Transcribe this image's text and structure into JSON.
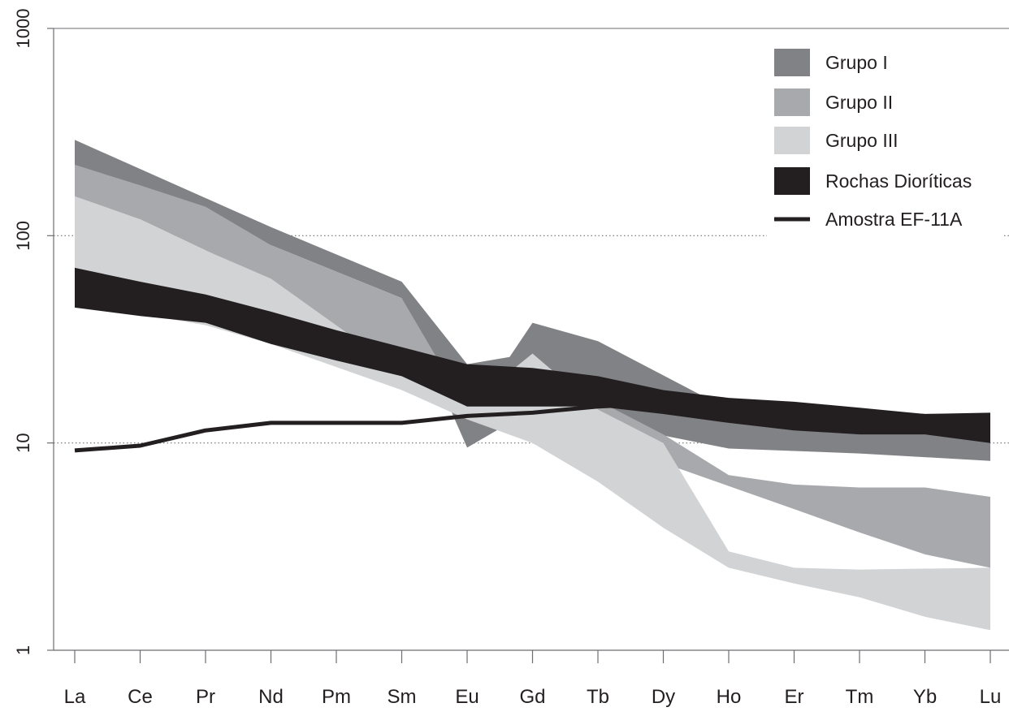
{
  "chart_data": {
    "type": "area",
    "y_scale": "log",
    "ylim": [
      1,
      1000
    ],
    "yticks": [
      {
        "value": 1,
        "label": "1"
      },
      {
        "value": 10,
        "label": "10"
      },
      {
        "value": 100,
        "label": "100"
      },
      {
        "value": 1000,
        "label": "1000"
      }
    ],
    "gridlines": [
      10,
      100
    ],
    "categories": [
      "La",
      "Ce",
      "Pr",
      "Nd",
      "Pm",
      "Sm",
      "Eu",
      "Gd",
      "Tb",
      "Dy",
      "Ho",
      "Er",
      "Tm",
      "Yb",
      "Lu"
    ],
    "legend_position": "top-right",
    "series": [
      {
        "name": "Grupo I",
        "kind": "band",
        "color": "#818285",
        "upper": [
          {
            "x": 0,
            "y": 290
          },
          {
            "x": 3,
            "y": 110
          },
          {
            "x": 5,
            "y": 60
          },
          {
            "x": 6,
            "y": 24
          },
          {
            "x": 6.65,
            "y": 26
          },
          {
            "x": 7,
            "y": 38
          },
          {
            "x": 8,
            "y": 31
          },
          {
            "x": 10,
            "y": 14.5
          },
          {
            "x": 12,
            "y": 12.5
          },
          {
            "x": 14,
            "y": 11.8
          }
        ],
        "lower": [
          {
            "x": 0,
            "y": 215
          },
          {
            "x": 3,
            "y": 90
          },
          {
            "x": 5,
            "y": 50
          },
          {
            "x": 6,
            "y": 9.5
          },
          {
            "x": 7,
            "y": 14.5
          },
          {
            "x": 10,
            "y": 9.4
          },
          {
            "x": 12,
            "y": 8.9
          },
          {
            "x": 14,
            "y": 8.2
          }
        ]
      },
      {
        "name": "Grupo II",
        "kind": "band",
        "color": "#a7a9ac",
        "upper": [
          {
            "x": 0,
            "y": 220
          },
          {
            "x": 1,
            "y": 175
          },
          {
            "x": 2,
            "y": 138
          },
          {
            "x": 3,
            "y": 90
          },
          {
            "x": 5,
            "y": 50
          },
          {
            "x": 6,
            "y": 14.5
          },
          {
            "x": 7,
            "y": 18
          },
          {
            "x": 8,
            "y": 16
          },
          {
            "x": 9,
            "y": 11
          },
          {
            "x": 10,
            "y": 7.0
          },
          {
            "x": 11,
            "y": 6.3
          },
          {
            "x": 12,
            "y": 6.1
          },
          {
            "x": 13,
            "y": 6.1
          },
          {
            "x": 14,
            "y": 5.5
          }
        ],
        "lower": [
          {
            "x": 0,
            "y": 150
          },
          {
            "x": 1,
            "y": 120
          },
          {
            "x": 2,
            "y": 85
          },
          {
            "x": 3,
            "y": 60
          },
          {
            "x": 5,
            "y": 20
          },
          {
            "x": 6,
            "y": 13.5
          },
          {
            "x": 7,
            "y": 11
          },
          {
            "x": 8,
            "y": 10.5
          },
          {
            "x": 9,
            "y": 8
          },
          {
            "x": 10,
            "y": 6.2
          },
          {
            "x": 11,
            "y": 4.8
          },
          {
            "x": 12,
            "y": 3.7
          },
          {
            "x": 13,
            "y": 2.9
          },
          {
            "x": 14,
            "y": 2.5
          }
        ]
      },
      {
        "name": "Grupo III",
        "kind": "band",
        "color": "#d1d3d4",
        "upper": [
          {
            "x": 0,
            "y": 155
          },
          {
            "x": 1,
            "y": 120
          },
          {
            "x": 2,
            "y": 85
          },
          {
            "x": 3,
            "y": 62
          },
          {
            "x": 5,
            "y": 22
          },
          {
            "x": 6,
            "y": 15
          },
          {
            "x": 7,
            "y": 27
          },
          {
            "x": 8,
            "y": 14.5
          },
          {
            "x": 9,
            "y": 10
          },
          {
            "x": 10,
            "y": 3.0
          },
          {
            "x": 11,
            "y": 2.5
          },
          {
            "x": 12,
            "y": 2.45
          },
          {
            "x": 14,
            "y": 2.5
          }
        ],
        "lower": [
          {
            "x": 0,
            "y": 45
          },
          {
            "x": 1,
            "y": 42
          },
          {
            "x": 2,
            "y": 37
          },
          {
            "x": 3,
            "y": 30
          },
          {
            "x": 5,
            "y": 18
          },
          {
            "x": 6,
            "y": 13
          },
          {
            "x": 7,
            "y": 10
          },
          {
            "x": 8,
            "y": 6.5
          },
          {
            "x": 9,
            "y": 3.9
          },
          {
            "x": 10,
            "y": 2.5
          },
          {
            "x": 11,
            "y": 2.1
          },
          {
            "x": 12,
            "y": 1.8
          },
          {
            "x": 13,
            "y": 1.45
          },
          {
            "x": 14,
            "y": 1.25
          }
        ]
      },
      {
        "name": "Rochas Dioríticas",
        "kind": "band",
        "color": "#231f20",
        "upper": [
          {
            "x": 0,
            "y": 70
          },
          {
            "x": 1,
            "y": 60
          },
          {
            "x": 2,
            "y": 52
          },
          {
            "x": 3,
            "y": 43
          },
          {
            "x": 4,
            "y": 35
          },
          {
            "x": 5,
            "y": 29
          },
          {
            "x": 6,
            "y": 24
          },
          {
            "x": 7,
            "y": 23
          },
          {
            "x": 8,
            "y": 21
          },
          {
            "x": 9,
            "y": 18
          },
          {
            "x": 10,
            "y": 16.5
          },
          {
            "x": 11,
            "y": 15.8
          },
          {
            "x": 12,
            "y": 14.8
          },
          {
            "x": 13,
            "y": 13.8
          },
          {
            "x": 14,
            "y": 14
          }
        ],
        "lower": [
          {
            "x": 0,
            "y": 45
          },
          {
            "x": 1,
            "y": 41
          },
          {
            "x": 2,
            "y": 38
          },
          {
            "x": 3,
            "y": 30
          },
          {
            "x": 4,
            "y": 25
          },
          {
            "x": 5,
            "y": 21
          },
          {
            "x": 6,
            "y": 15
          },
          {
            "x": 7,
            "y": 15
          },
          {
            "x": 8,
            "y": 15
          },
          {
            "x": 9,
            "y": 13.8
          },
          {
            "x": 10,
            "y": 12.5
          },
          {
            "x": 11,
            "y": 11.5
          },
          {
            "x": 12,
            "y": 11
          },
          {
            "x": 13,
            "y": 11
          },
          {
            "x": 14,
            "y": 10
          }
        ]
      },
      {
        "name": "Amostra EF-11A",
        "kind": "line",
        "color": "#231f20",
        "points": [
          {
            "x": 0,
            "y": 9.2
          },
          {
            "x": 1,
            "y": 9.7
          },
          {
            "x": 2,
            "y": 11.5
          },
          {
            "x": 3,
            "y": 12.5
          },
          {
            "x": 4,
            "y": 12.5
          },
          {
            "x": 5,
            "y": 12.5
          },
          {
            "x": 6,
            "y": 13.5
          },
          {
            "x": 7,
            "y": 14
          },
          {
            "x": 8,
            "y": 15
          },
          {
            "x": 9,
            "y": 15.5
          },
          {
            "x": 10,
            "y": 15.5
          },
          {
            "x": 11,
            "y": 15
          },
          {
            "x": 12,
            "y": 14
          },
          {
            "x": 13,
            "y": 13.5
          },
          {
            "x": 14,
            "y": 13.5
          }
        ]
      }
    ]
  }
}
